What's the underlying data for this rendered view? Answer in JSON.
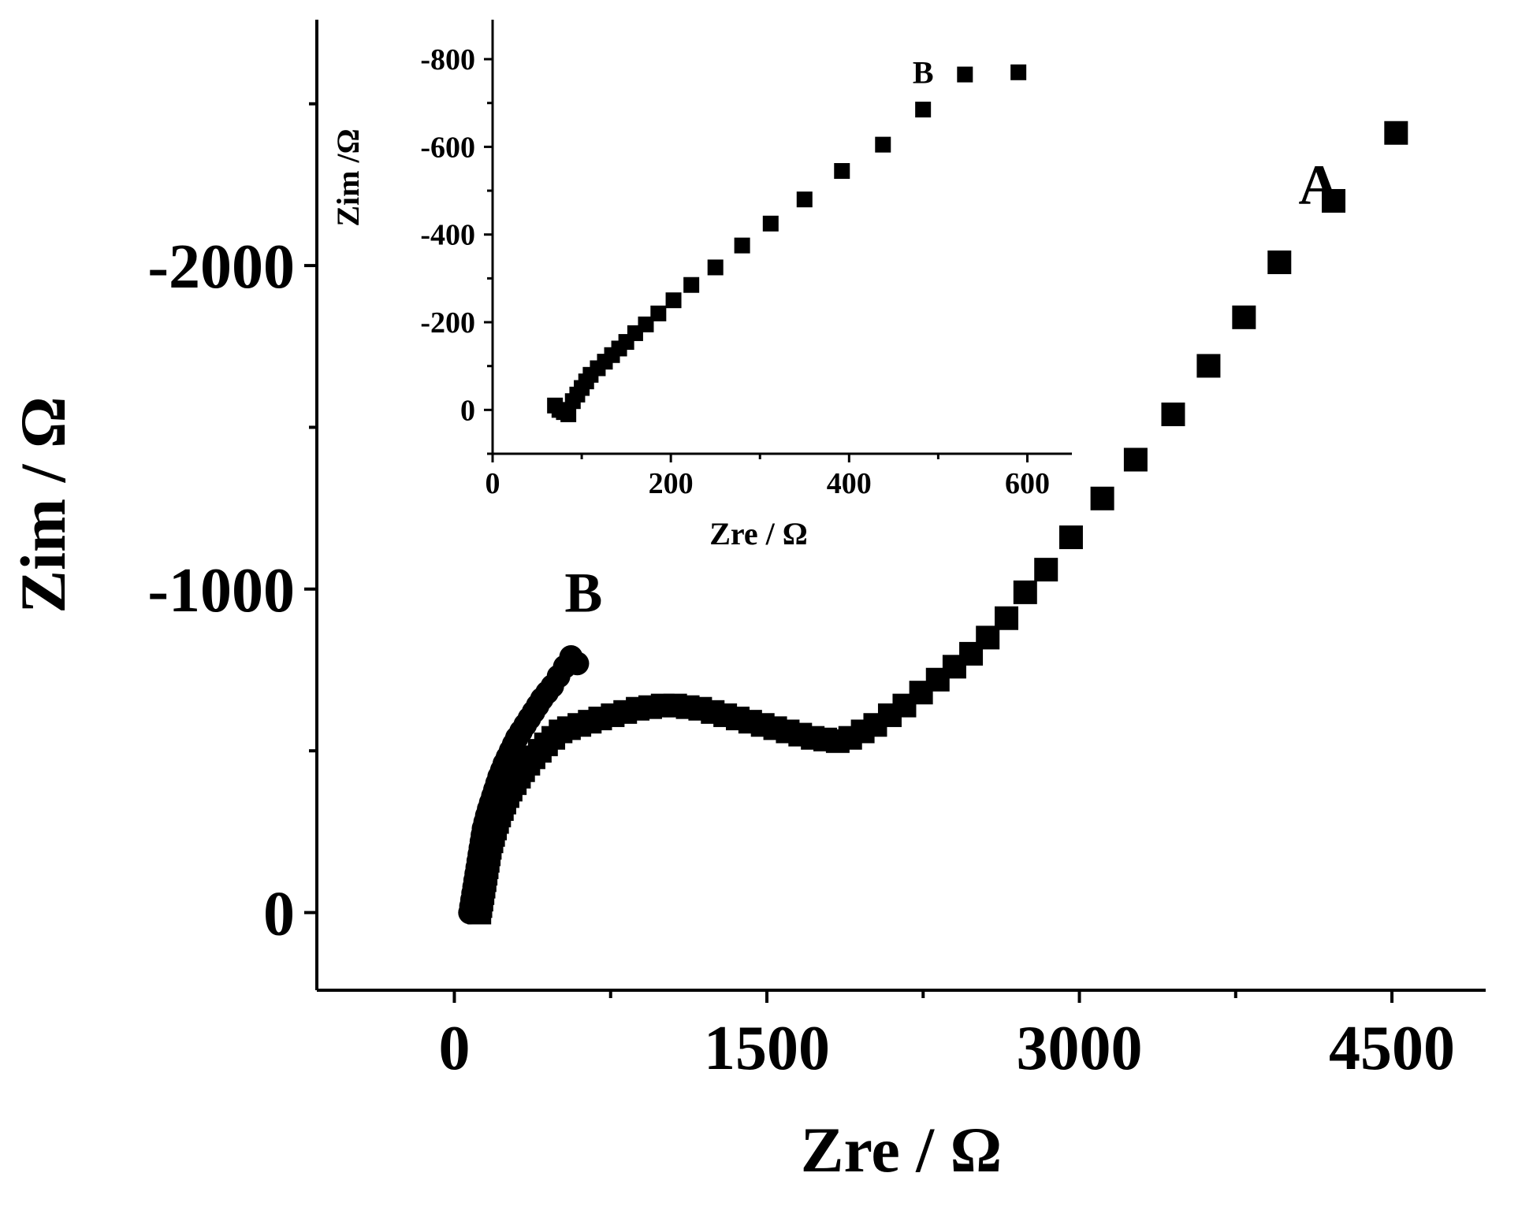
{
  "chart_data": [
    {
      "type": "scatter",
      "xlabel": "Zre / Ω",
      "ylabel": "Zim / Ω",
      "xlim": [
        -660,
        4950
      ],
      "ylim": [
        240,
        -2760
      ],
      "xticks": [
        0,
        1500,
        3000,
        4500
      ],
      "yticks": [
        0,
        -1000,
        -2000
      ],
      "xtick_labels": [
        "0",
        "1500",
        "3000",
        "4500"
      ],
      "ytick_labels": [
        "0",
        "-1000",
        "-2000"
      ],
      "grid": false,
      "annotations": [
        {
          "text": "A",
          "x": 4150,
          "y": -2190
        },
        {
          "text": "B",
          "x": 620,
          "y": -930
        }
      ],
      "series": [
        {
          "marker": "square",
          "x": [
            120,
            125,
            130,
            135,
            140,
            145,
            150,
            155,
            160,
            165,
            170,
            178,
            186,
            195,
            205,
            215,
            228,
            240,
            255,
            270,
            290,
            310,
            330,
            355,
            380,
            410,
            440,
            475,
            510,
            550,
            600,
            650,
            700,
            760,
            820,
            880,
            940,
            1000,
            1060,
            1120,
            1180,
            1240,
            1300,
            1360,
            1420,
            1480,
            1540,
            1600,
            1660,
            1720,
            1780,
            1840,
            1900,
            1960,
            2020,
            2090,
            2160,
            2240,
            2320,
            2400,
            2480,
            2560,
            2650,
            2740,
            2840,
            2960,
            3110,
            3270,
            3450,
            3620,
            3790,
            3960,
            4220,
            4520
          ],
          "y": [
            0,
            -20,
            -40,
            -60,
            -80,
            -100,
            -120,
            -140,
            -160,
            -180,
            -200,
            -220,
            -240,
            -260,
            -280,
            -300,
            -320,
            -340,
            -360,
            -380,
            -400,
            -420,
            -440,
            -460,
            -480,
            -500,
            -520,
            -540,
            -560,
            -570,
            -580,
            -590,
            -600,
            -610,
            -620,
            -630,
            -635,
            -640,
            -640,
            -635,
            -630,
            -620,
            -610,
            -600,
            -590,
            -580,
            -570,
            -560,
            -550,
            -540,
            -535,
            -530,
            -540,
            -560,
            -580,
            -610,
            -640,
            -680,
            -720,
            -760,
            -800,
            -850,
            -910,
            -990,
            -1060,
            -1160,
            -1280,
            -1400,
            -1540,
            -1690,
            -1840,
            -2010,
            -2200,
            -2410
          ]
        },
        {
          "name": "B",
          "marker": "circle",
          "x": [
            75,
            80,
            85,
            90,
            95,
            100,
            105,
            110,
            115,
            120,
            125,
            130,
            135,
            140,
            148,
            156,
            165,
            175,
            185,
            195,
            205,
            215,
            228,
            240,
            255,
            270,
            285,
            300,
            320,
            340,
            360,
            380,
            400,
            420,
            445,
            470,
            500,
            530,
            560,
            590
          ],
          "y": [
            0,
            -20,
            -40,
            -60,
            -80,
            -100,
            -120,
            -140,
            -160,
            -180,
            -200,
            -220,
            -240,
            -260,
            -280,
            -300,
            -320,
            -340,
            -360,
            -380,
            -400,
            -420,
            -440,
            -460,
            -480,
            -500,
            -520,
            -540,
            -560,
            -580,
            -600,
            -620,
            -640,
            -660,
            -680,
            -700,
            -730,
            -760,
            -790,
            -770
          ]
        }
      ]
    },
    {
      "type": "scatter",
      "inset": true,
      "xlabel": "Zre / Ω",
      "ylabel": "Zim /Ω",
      "xlim": [
        0,
        650
      ],
      "ylim": [
        100,
        -890
      ],
      "xticks": [
        0,
        200,
        400,
        600
      ],
      "yticks": [
        0,
        -200,
        -400,
        -600,
        -800
      ],
      "xtick_labels": [
        "0",
        "200",
        "400",
        "600"
      ],
      "ytick_labels": [
        "0",
        "-200",
        "-400",
        "-600",
        "-800"
      ],
      "grid": false,
      "annotations": [
        {
          "text": "B",
          "x": 483,
          "y": -745
        }
      ],
      "series": [
        {
          "marker": "square",
          "x": [
            70,
            75,
            80,
            85,
            90,
            95,
            100,
            105,
            110,
            118,
            126,
            134,
            142,
            150,
            160,
            172,
            186,
            203,
            223,
            250,
            280,
            312,
            350,
            392,
            438,
            483,
            530,
            590
          ],
          "y": [
            -10,
            0,
            5,
            10,
            -20,
            -35,
            -50,
            -65,
            -80,
            -95,
            -110,
            -125,
            -140,
            -155,
            -175,
            -195,
            -220,
            -250,
            -285,
            -325,
            -375,
            -425,
            -480,
            -545,
            -605,
            -685,
            -765,
            -770
          ]
        }
      ]
    }
  ]
}
